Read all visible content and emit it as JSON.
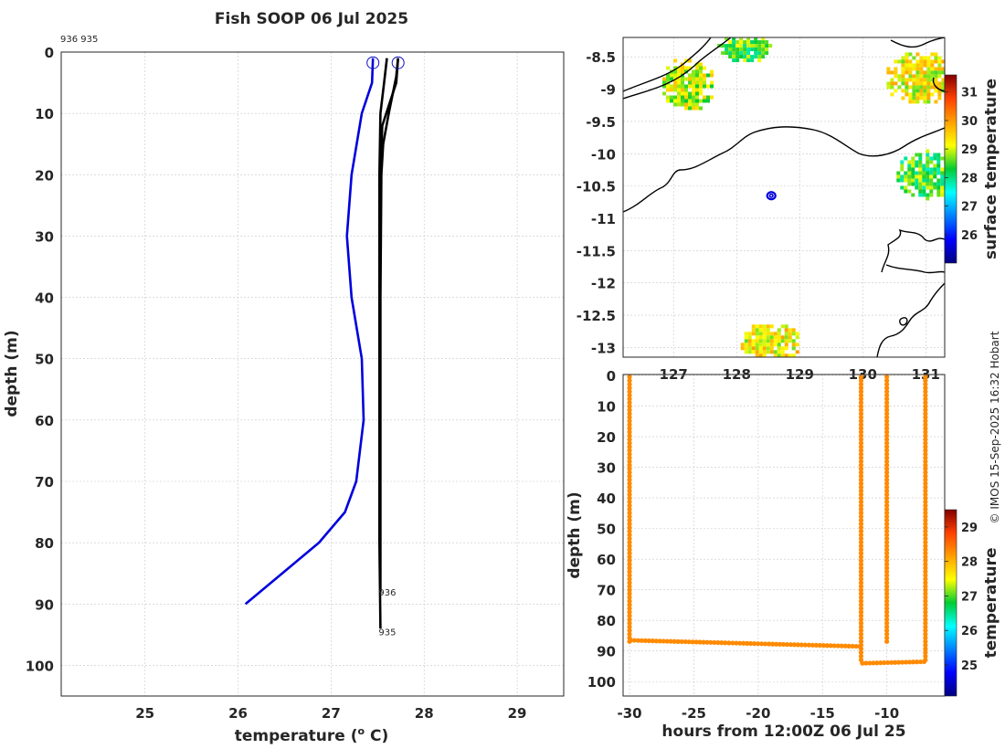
{
  "figure": {
    "title": "Fish SOOP 06 Jul 2025",
    "profile_ids": "936 935",
    "credit": "© IMOS 15-Sep-2025 16:32 Hobart",
    "colors": {
      "profile_blue": "#0000dd",
      "profile_black": "#000000",
      "grid": "#c8c8c8"
    }
  },
  "chart_data": [
    {
      "id": "profile",
      "type": "line",
      "xlabel": "temperature (° C)",
      "xlabel_main": "temperature (",
      "xlabel_sup": "o",
      "xlabel_end": " C)",
      "ylabel": "depth (m)",
      "xlim": [
        24.1,
        29.5
      ],
      "ylim": [
        0,
        105
      ],
      "y_reversed": true,
      "xticks": [
        25,
        26,
        27,
        28,
        29
      ],
      "yticks": [
        0,
        10,
        20,
        30,
        40,
        50,
        60,
        70,
        80,
        90,
        100
      ],
      "grid": true,
      "series": [
        {
          "color": "#0000dd",
          "x": [
            27.45,
            27.44,
            27.33,
            27.22,
            27.17,
            27.22,
            27.33,
            27.35,
            27.27,
            27.15,
            26.87,
            26.08
          ],
          "y": [
            1,
            5,
            10,
            20,
            30,
            40,
            50,
            60,
            70,
            75,
            80,
            90
          ],
          "start_marker": true
        },
        {
          "color": "#000000",
          "x": [
            27.72,
            27.7,
            27.62,
            27.56,
            27.54,
            27.53,
            27.53,
            27.53,
            27.53
          ],
          "y": [
            1,
            4,
            10,
            15,
            20,
            40,
            60,
            80,
            88
          ]
        },
        {
          "color": "#000000",
          "x": [
            27.6,
            27.57,
            27.53,
            27.52,
            27.52,
            27.52,
            27.52,
            27.53
          ],
          "y": [
            1,
            5,
            10,
            20,
            40,
            60,
            80,
            94
          ]
        },
        {
          "color": "#000000",
          "x": [
            27.72,
            27.7,
            27.55,
            27.53,
            27.53
          ],
          "y": [
            1,
            5,
            12,
            20,
            30
          ],
          "start_marker": true
        }
      ],
      "annotations": [
        {
          "text": "936",
          "x": 27.53,
          "y": 88
        },
        {
          "text": "935",
          "x": 27.53,
          "y": 94.5
        }
      ]
    },
    {
      "id": "map",
      "type": "heatmap",
      "xlim": [
        126.2,
        131.3
      ],
      "ylim": [
        -13.15,
        -8.2
      ],
      "xticks": [
        127,
        128,
        129,
        130,
        131
      ],
      "yticks": [
        -8.5,
        -9,
        -9.5,
        -10,
        -10.5,
        -11,
        -11.5,
        -12,
        -12.5,
        -13
      ],
      "ytick_labels": [
        "-8.5",
        "-9",
        "-9.5",
        "-10",
        "-10.5",
        "-11",
        "-11.5",
        "-12",
        "-12.5",
        "-13"
      ],
      "grid": true,
      "colorbar": {
        "label": "surface temperature",
        "range": [
          25.0,
          31.6
        ],
        "ticks": [
          26,
          27,
          28,
          29,
          30,
          31
        ]
      },
      "station": {
        "lon": 128.55,
        "lat": -10.65,
        "color": "#0000dd"
      },
      "sst_patches": [
        {
          "lon": 128.1,
          "lat": -8.3,
          "value": 28.5
        },
        {
          "lon": 127.2,
          "lat": -8.9,
          "value": 29.0
        },
        {
          "lon": 130.9,
          "lat": -8.8,
          "value": 29.2
        },
        {
          "lon": 131.0,
          "lat": -10.3,
          "value": 28.4
        },
        {
          "lon": 128.5,
          "lat": -12.9,
          "value": 29.3
        }
      ]
    },
    {
      "id": "section",
      "type": "scatter",
      "xlabel": "hours from 12:00Z 06 Jul 25",
      "ylabel": "depth (m)",
      "xlim": [
        -30.5,
        -5.5
      ],
      "ylim": [
        0,
        105
      ],
      "y_reversed": true,
      "xticks": [
        -30,
        -25,
        -20,
        -15,
        -10
      ],
      "yticks": [
        0,
        10,
        20,
        30,
        40,
        50,
        60,
        70,
        80,
        90,
        100
      ],
      "grid": true,
      "colorbar": {
        "label": "temperature",
        "range": [
          24.1,
          29.5
        ],
        "ticks": [
          25,
          26,
          27,
          28,
          29
        ]
      },
      "casts": [
        {
          "x": -30.0,
          "bottom": 87
        },
        {
          "x": -12.0,
          "bottom": 94
        },
        {
          "x": -10.0,
          "bottom": 88
        },
        {
          "x": -7.0,
          "bottom": 93.5
        }
      ],
      "tracks": [
        {
          "x": [
            -29.9,
            -12.1
          ],
          "y": [
            86.5,
            88.5
          ]
        },
        {
          "x": [
            -11.9,
            -7.1
          ],
          "y": [
            94,
            93.5
          ]
        }
      ],
      "point_value": 28.3
    }
  ]
}
